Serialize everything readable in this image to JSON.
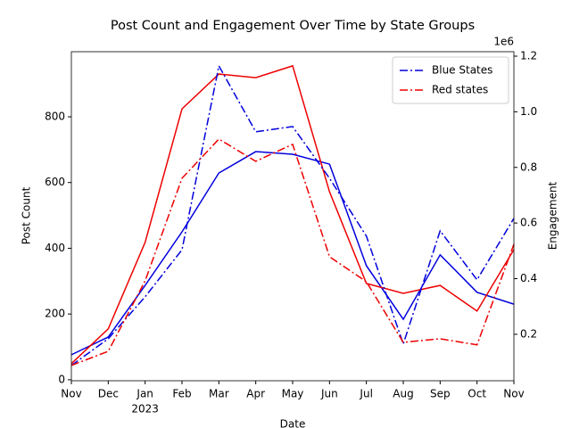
{
  "chart_data": {
    "type": "line",
    "title": "Post Count and Engagement Over Time by State Groups",
    "xlabel": "Date",
    "ylabel": "Post Count",
    "y2label": "Engagement",
    "y2_offset_label": "1e6",
    "categories": [
      "Nov",
      "Dec",
      "Jan",
      "Feb",
      "Mar",
      "Apr",
      "May",
      "Jun",
      "Jul",
      "Aug",
      "Sep",
      "Oct",
      "Nov"
    ],
    "x_secondary_labels": [
      null,
      null,
      "2023",
      null,
      null,
      null,
      null,
      null,
      null,
      null,
      null,
      null,
      null
    ],
    "ylim": [
      -3,
      998
    ],
    "yticks": [
      0,
      200,
      400,
      600,
      800
    ],
    "y2lim": [
      0.033,
      1.216
    ],
    "y2ticks": [
      0.2,
      0.4,
      0.6,
      0.8,
      {
        "value": 1,
        "label": "1.0"
      },
      1.2
    ],
    "legend": "upper right",
    "series": [
      {
        "color": "#0000dd",
        "style": "solid",
        "axis": "y",
        "values": [
          76,
          130,
          287,
          450,
          629,
          694,
          686,
          656,
          347,
          184,
          380,
          266,
          230
        ]
      },
      {
        "color": "#ee0000",
        "style": "solid",
        "axis": "y",
        "values": [
          49,
          155,
          418,
          824,
          930,
          919,
          955,
          572,
          293,
          263,
          287,
          209,
          396
        ]
      },
      {
        "name": "Blue States",
        "color": "#0000dd",
        "style": "dashdot",
        "axis": "y2",
        "values": [
          0.088,
          0.184,
          0.335,
          0.504,
          1.165,
          0.928,
          0.947,
          0.761,
          0.553,
          0.165,
          0.572,
          0.396,
          0.617
        ]
      },
      {
        "name": "Red states",
        "color": "#ee0000",
        "style": "dashdot",
        "axis": "y2",
        "values": [
          0.088,
          0.139,
          0.392,
          0.761,
          0.902,
          0.822,
          0.883,
          0.479,
          0.389,
          0.171,
          0.184,
          0.162,
          0.524
        ]
      }
    ]
  }
}
